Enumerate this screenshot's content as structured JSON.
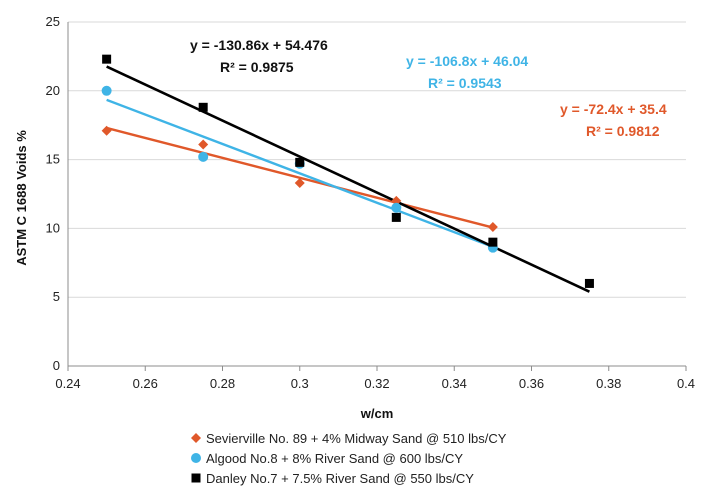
{
  "chart_data": {
    "type": "scatter",
    "xlabel": "w/cm",
    "ylabel": "ASTM C 1688  Voids %",
    "xlim": [
      0.24,
      0.4
    ],
    "ylim": [
      0,
      25
    ],
    "x_ticks": [
      "0.24",
      "0.26",
      "0.28",
      "0.3",
      "0.32",
      "0.34",
      "0.36",
      "0.38",
      "0.4"
    ],
    "y_ticks": [
      "0",
      "5",
      "10",
      "15",
      "20",
      "25"
    ],
    "grid": "horizontal",
    "legend_position": "bottom",
    "series": [
      {
        "name": "Sevierville No. 89 + 4% Midway Sand @ 510 lbs/CY",
        "color": "#e0582a",
        "marker": "diamond",
        "points": [
          [
            0.25,
            17.1
          ],
          [
            0.275,
            16.1
          ],
          [
            0.3,
            13.3
          ],
          [
            0.325,
            12.0
          ],
          [
            0.35,
            10.1
          ]
        ],
        "trendline": {
          "slope": -72.4,
          "intercept": 35.4,
          "x_range": [
            0.25,
            0.35
          ]
        },
        "equation": "y = -72.4x + 35.4",
        "r2": "R² = 0.9812"
      },
      {
        "name": "Algood No.8 + 8% River Sand @ 600 lbs/CY",
        "color": "#3fb4e6",
        "marker": "circle",
        "points": [
          [
            0.25,
            20.0
          ],
          [
            0.275,
            15.2
          ],
          [
            0.3,
            14.7
          ],
          [
            0.325,
            11.5
          ],
          [
            0.35,
            8.6
          ]
        ],
        "trendline": {
          "slope": -106.8,
          "intercept": 46.04,
          "x_range": [
            0.25,
            0.35
          ]
        },
        "equation": "y = -106.8x + 46.04",
        "r2": "R² = 0.9543"
      },
      {
        "name": "Danley No.7 + 7.5% River Sand @ 550 lbs/CY",
        "color": "#000000",
        "marker": "square",
        "points": [
          [
            0.25,
            22.3
          ],
          [
            0.275,
            18.8
          ],
          [
            0.3,
            14.8
          ],
          [
            0.325,
            10.8
          ],
          [
            0.35,
            9.0
          ],
          [
            0.375,
            6.0
          ]
        ],
        "trendline": {
          "slope": -130.86,
          "intercept": 54.476,
          "x_range": [
            0.25,
            0.375
          ]
        },
        "equation": "y = -130.86x + 54.476",
        "r2": "R² = 0.9875"
      }
    ]
  }
}
